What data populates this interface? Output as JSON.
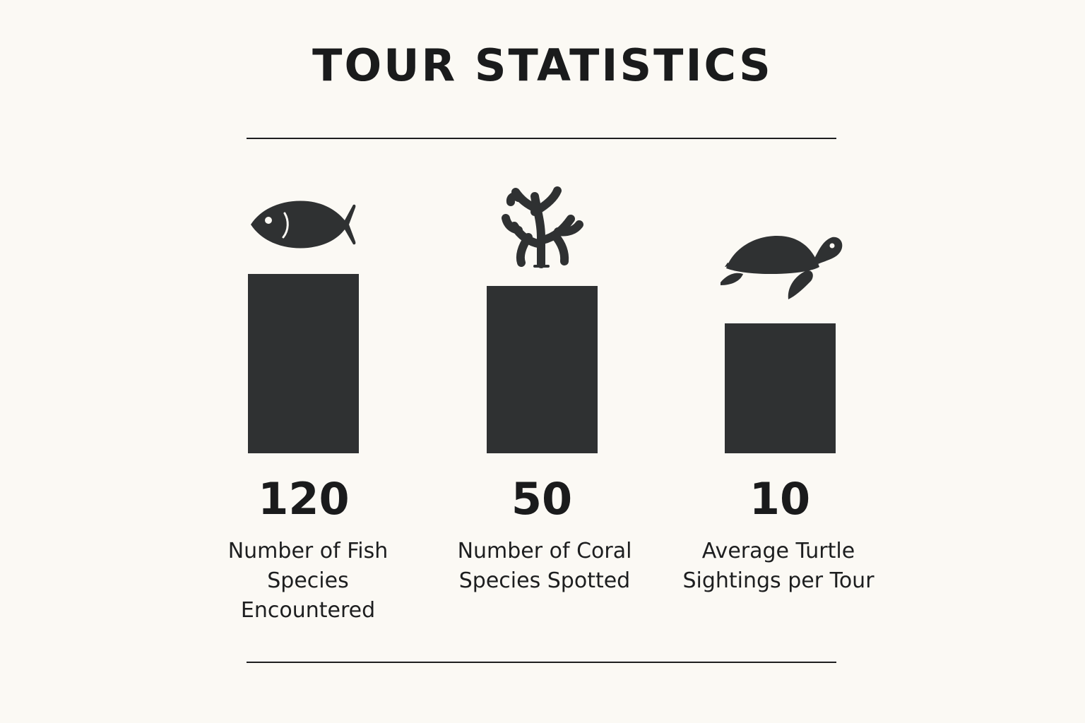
{
  "title": "TOUR STATISTICS",
  "colors": {
    "background": "#fbf9f4",
    "bar": "#2f3132",
    "text": "#1d1e1f"
  },
  "chart_data": {
    "type": "bar",
    "title": "TOUR STATISTICS",
    "categories": [
      "Number of Fish Species Encountered",
      "Number of Coral Species Spotted",
      "Average Turtle Sightings per Tour"
    ],
    "category_lines": [
      [
        "Number of Fish",
        "Species",
        "Encountered"
      ],
      [
        "Number of Coral",
        "Species Spotted"
      ],
      [
        "Average Turtle",
        "Sightings per Tour"
      ]
    ],
    "values": [
      120,
      50,
      10
    ],
    "value_labels": [
      "120",
      "50",
      "10"
    ],
    "icons": [
      "fish-icon",
      "coral-icon",
      "turtle-icon"
    ],
    "xlabel": "",
    "ylabel": "",
    "grid": false,
    "legend": "none"
  }
}
